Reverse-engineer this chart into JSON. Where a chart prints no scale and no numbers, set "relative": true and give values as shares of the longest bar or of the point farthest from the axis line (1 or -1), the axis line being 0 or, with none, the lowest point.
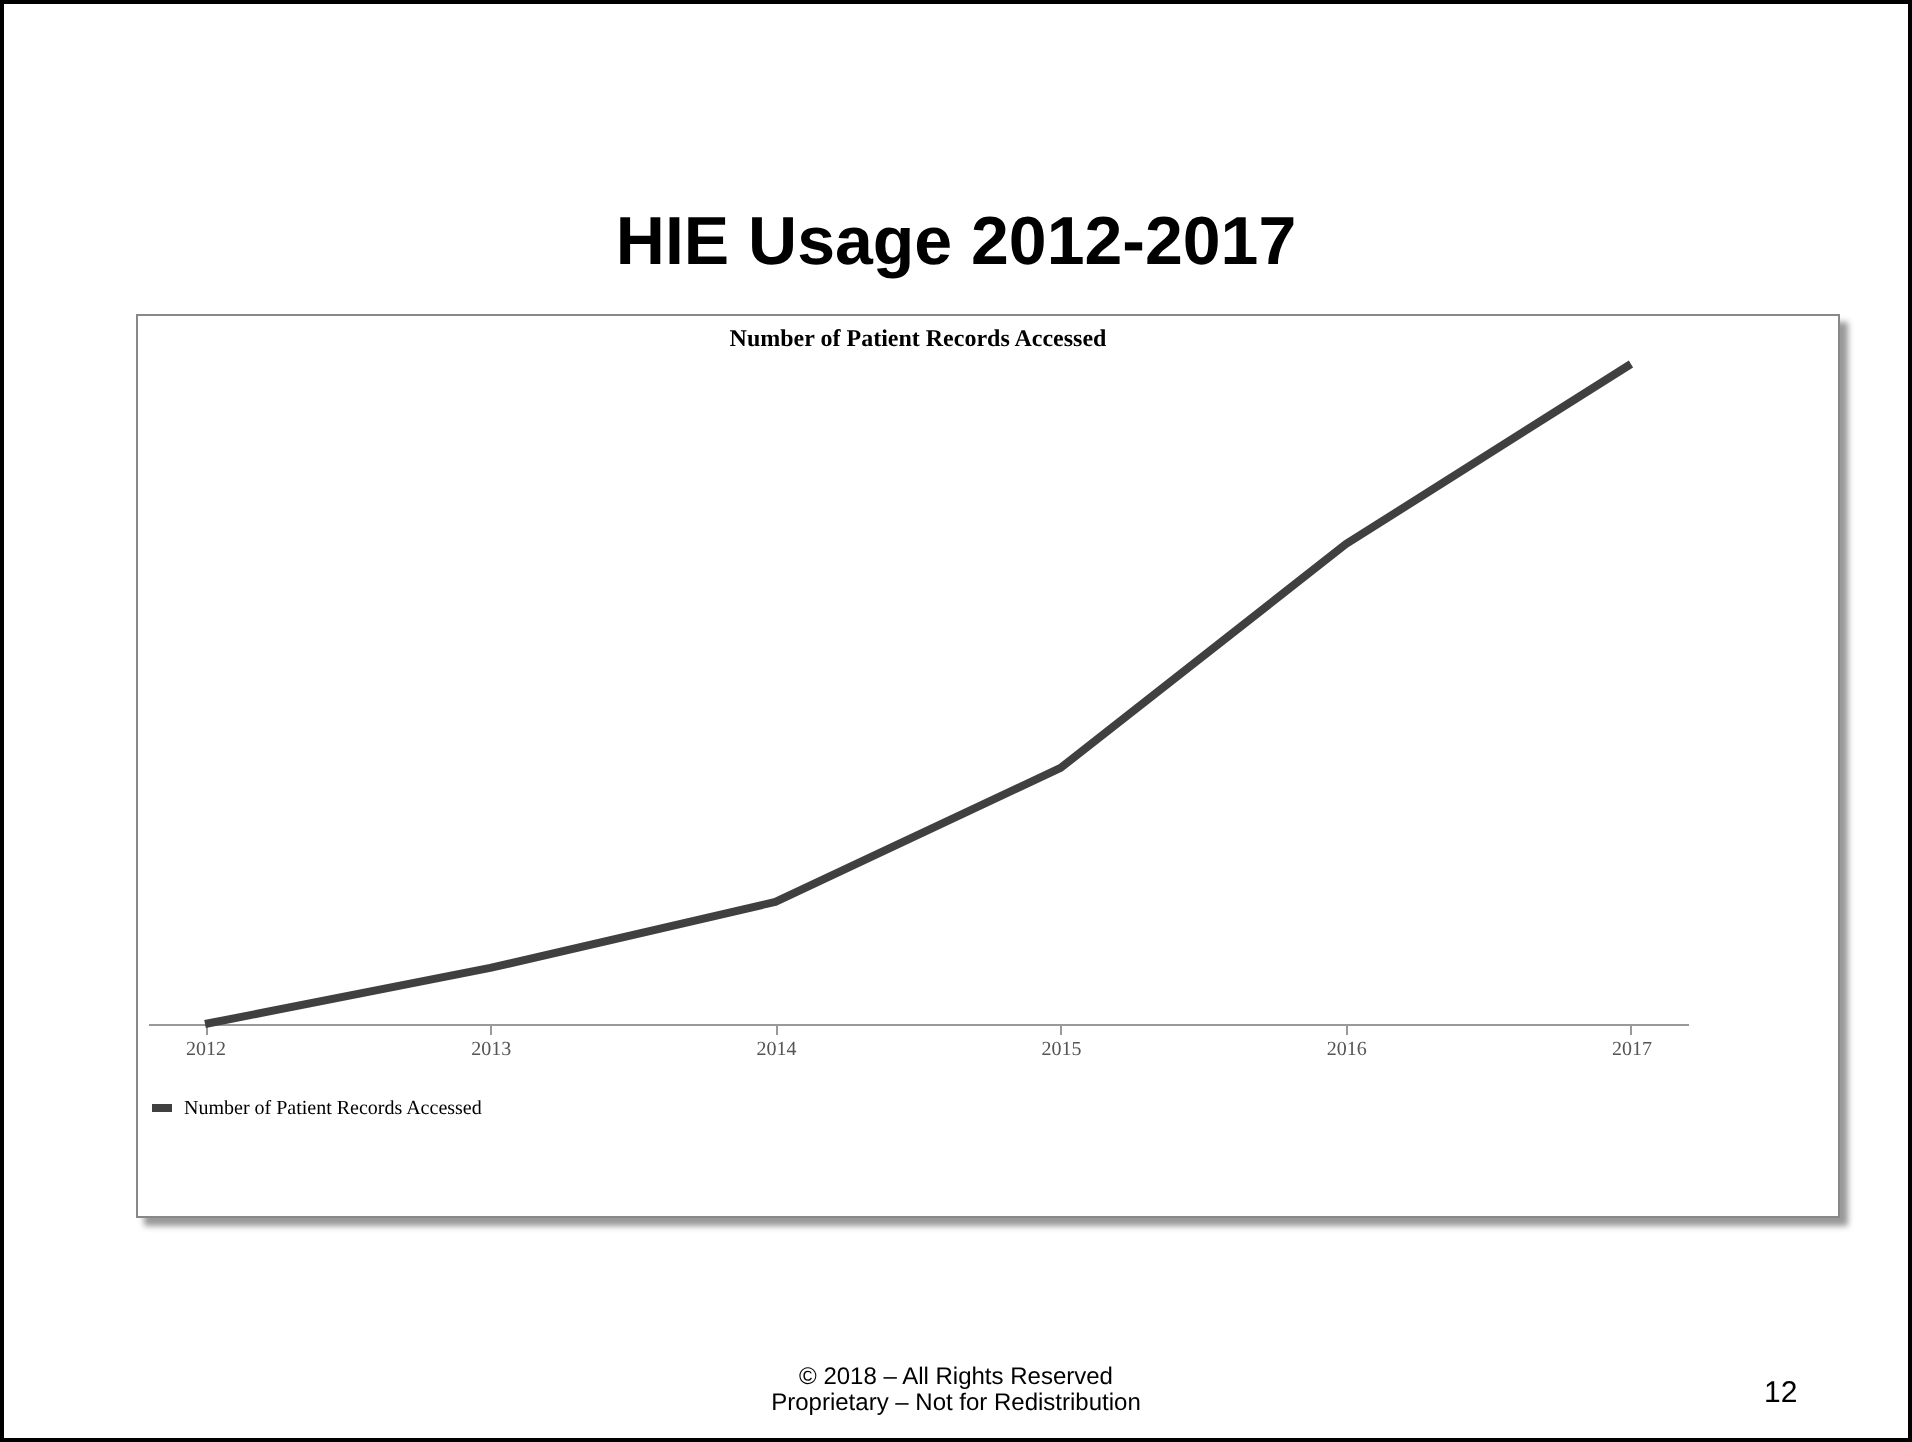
{
  "chart_data": {
    "type": "line",
    "title": "HIE Usage 2012-2017",
    "subtitle": "Number of Patient Records Accessed",
    "categories": [
      "2012",
      "2013",
      "2014",
      "2015",
      "2016",
      "2017"
    ],
    "series": [
      {
        "name": "Number of Patient Records Accessed",
        "color": "#404040",
        "values": [
          0,
          0.085,
          0.185,
          0.388,
          0.727,
          1
        ]
      }
    ],
    "relative": true,
    "legend": "bottom",
    "marker": "none",
    "line_style": "solid",
    "annotations": [
      "© 2018 – All Rights Reserved",
      "Proprietary – Not for Redistribution",
      "12"
    ]
  }
}
